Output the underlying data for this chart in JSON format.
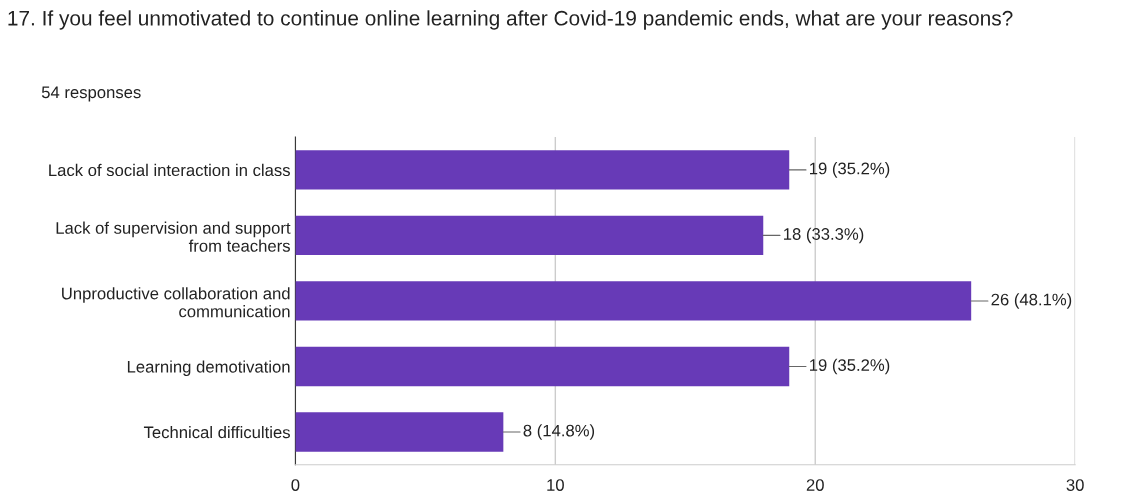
{
  "chart_data": {
    "type": "bar",
    "orientation": "horizontal",
    "title": "17. If you feel unmotivated to continue online learning after Covid-19 pandemic ends, what are your reasons?",
    "subtitle": "54 responses",
    "categories": [
      "Lack of social interaction in class",
      "Lack of supervision and support\nfrom teachers",
      "Unproductive collaboration and\ncommunication",
      "Learning demotivation",
      "Technical difficulties"
    ],
    "values": [
      19,
      18,
      26,
      19,
      8
    ],
    "value_labels": [
      "19 (35.2%)",
      "18 (33.3%)",
      "26 (48.1%)",
      "19 (35.2%)",
      "8 (14.8%)"
    ],
    "color": "#673ab7",
    "xlim": [
      0,
      30
    ],
    "xticks": [
      0,
      10,
      20,
      30
    ],
    "grid": "x"
  }
}
